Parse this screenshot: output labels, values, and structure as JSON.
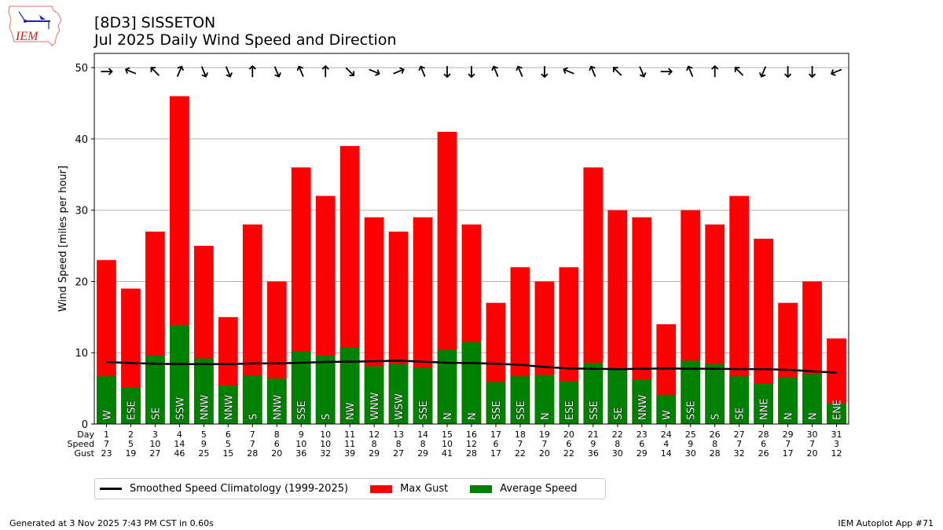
{
  "header": {
    "logo_text": "IEM",
    "title_line1": "[8D3] SISSETON",
    "title_line2": "Jul 2025 Daily Wind Speed and Direction"
  },
  "footer": {
    "generated": "Generated at 3 Nov 2025 7:43 PM CST in 0.60s",
    "app": "IEM Autoplot App #71"
  },
  "legend": {
    "climatology": "Smoothed Speed Climatology (1999-2025)",
    "gust": "Max Gust",
    "speed": "Average Speed"
  },
  "colors": {
    "gust": "#ff0000",
    "speed": "#008000",
    "climatology": "#000000",
    "grid": "#b0b0b0"
  },
  "chart_data": {
    "type": "bar",
    "title": "[8D3] SISSETON Jul 2025 Daily Wind Speed and Direction",
    "xlabel": "",
    "ylabel": "Wind Speed [miles per hour]",
    "ylim": [
      0,
      52
    ],
    "yticks": [
      0,
      10,
      20,
      30,
      40,
      50
    ],
    "grid": "horizontal",
    "legend_position": "bottom-left",
    "table_row_labels": [
      "Day",
      "Speed",
      "Gust"
    ],
    "categories": [
      "1",
      "2",
      "3",
      "4",
      "5",
      "6",
      "7",
      "8",
      "9",
      "10",
      "11",
      "12",
      "13",
      "14",
      "15",
      "16",
      "17",
      "18",
      "19",
      "20",
      "21",
      "22",
      "23",
      "24",
      "25",
      "26",
      "27",
      "28",
      "29",
      "30",
      "31"
    ],
    "speed_rounded": [
      7,
      5,
      10,
      14,
      9,
      5,
      7,
      6,
      10,
      10,
      11,
      8,
      8,
      8,
      10,
      12,
      6,
      7,
      7,
      6,
      9,
      8,
      6,
      4,
      9,
      8,
      7,
      6,
      7,
      7,
      3
    ],
    "gust_rounded": [
      23,
      19,
      27,
      46,
      25,
      15,
      28,
      20,
      36,
      32,
      39,
      29,
      27,
      29,
      41,
      28,
      17,
      22,
      20,
      22,
      36,
      30,
      29,
      14,
      30,
      28,
      32,
      26,
      17,
      20,
      12
    ],
    "direction": [
      "W",
      "ESE",
      "SE",
      "SSW",
      "NNW",
      "NNW",
      "S",
      "NNW",
      "SSE",
      "S",
      "NW",
      "WNW",
      "WSW",
      "SSE",
      "N",
      "N",
      "SSE",
      "SSE",
      "N",
      "ESE",
      "SSE",
      "SE",
      "NNW",
      "W",
      "SSE",
      "S",
      "SE",
      "NNE",
      "N",
      "N",
      "ENE"
    ],
    "series": [
      {
        "name": "Max Gust",
        "type": "bar",
        "color": "#ff0000",
        "values": [
          23,
          19,
          27,
          46,
          25,
          15,
          28,
          20,
          36,
          32,
          39,
          29,
          27,
          29,
          41,
          28,
          17,
          22,
          20,
          22,
          36,
          30,
          29,
          14,
          30,
          28,
          32,
          26,
          17,
          20,
          12
        ]
      },
      {
        "name": "Average Speed",
        "type": "bar",
        "color": "#008000",
        "values": [
          6.7,
          5.1,
          9.6,
          13.9,
          9.2,
          5.4,
          6.8,
          6.4,
          10.2,
          9.6,
          10.7,
          8.1,
          8.4,
          7.9,
          10.4,
          11.5,
          5.9,
          6.7,
          6.9,
          6.0,
          8.6,
          7.7,
          6.2,
          4.1,
          8.9,
          8.4,
          6.7,
          5.7,
          6.6,
          7.0,
          2.9
        ]
      },
      {
        "name": "Smoothed Speed Climatology (1999-2025)",
        "type": "line",
        "color": "#000000",
        "values": [
          8.7,
          8.55,
          8.45,
          8.4,
          8.4,
          8.4,
          8.5,
          8.5,
          8.6,
          8.7,
          8.75,
          8.8,
          8.9,
          8.75,
          8.6,
          8.55,
          8.45,
          8.3,
          8.0,
          7.8,
          7.75,
          7.7,
          7.75,
          7.8,
          7.75,
          7.75,
          7.7,
          7.7,
          7.6,
          7.4,
          7.2
        ]
      }
    ],
    "arrow_row_value": 50
  }
}
